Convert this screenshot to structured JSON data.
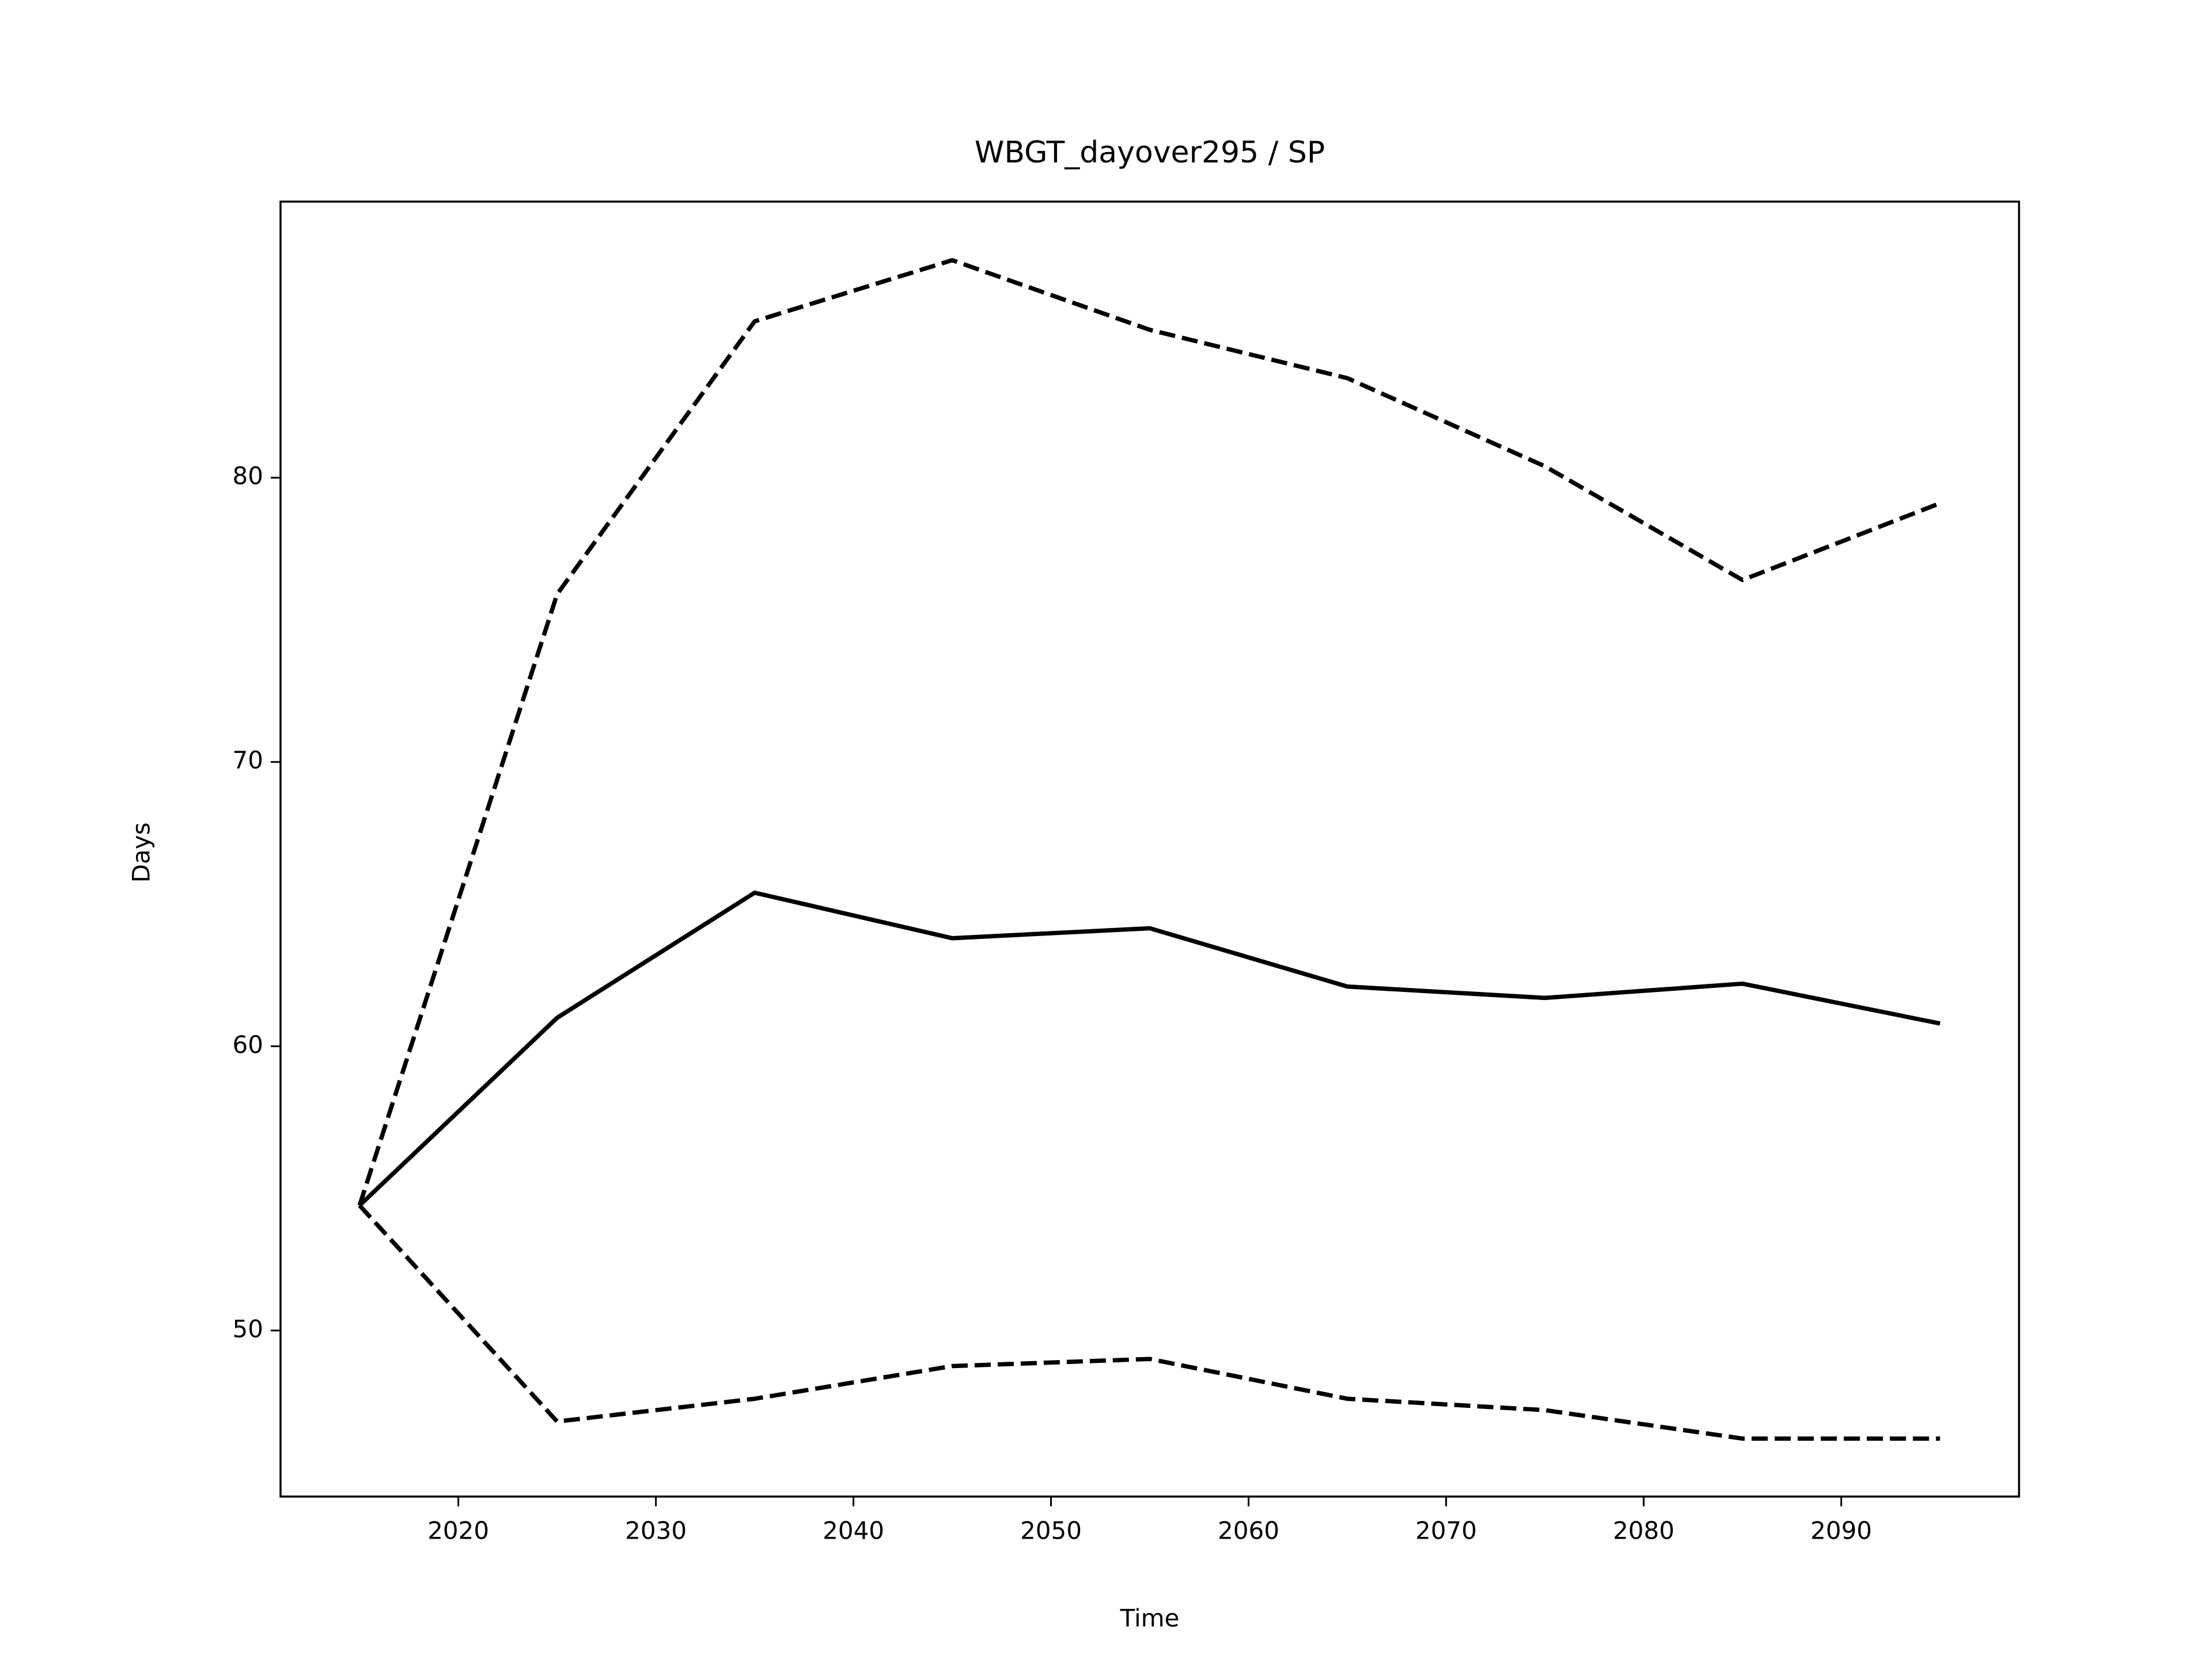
{
  "chart_data": {
    "type": "line",
    "title": "WBGT_dayover295 / SP",
    "x_label": "Time",
    "y_label": "Days",
    "x": [
      2015,
      2025,
      2035,
      2045,
      2055,
      2065,
      2075,
      2085,
      2095
    ],
    "series": [
      {
        "color": "#000000",
        "dash": "solid",
        "values": [
          54.4,
          61.0,
          65.4,
          63.8,
          64.15,
          62.1,
          61.7,
          62.2,
          60.8
        ]
      },
      {
        "color": "#000000",
        "dash": "dashed",
        "values": [
          54.4,
          75.9,
          85.5,
          87.65,
          85.2,
          83.5,
          80.4,
          76.4,
          79.1
        ]
      },
      {
        "color": "#000000",
        "dash": "dashed",
        "values": [
          54.4,
          46.8,
          47.6,
          48.75,
          49.0,
          47.6,
          47.2,
          46.2,
          46.2
        ]
      }
    ],
    "xlim": [
      2011,
      2099
    ],
    "xticks": [
      2020,
      2030,
      2040,
      2050,
      2060,
      2070,
      2080,
      2090
    ],
    "ylim": [
      44.16,
      89.71
    ],
    "yticks": [
      50,
      60,
      70,
      80
    ],
    "grid": false
  }
}
